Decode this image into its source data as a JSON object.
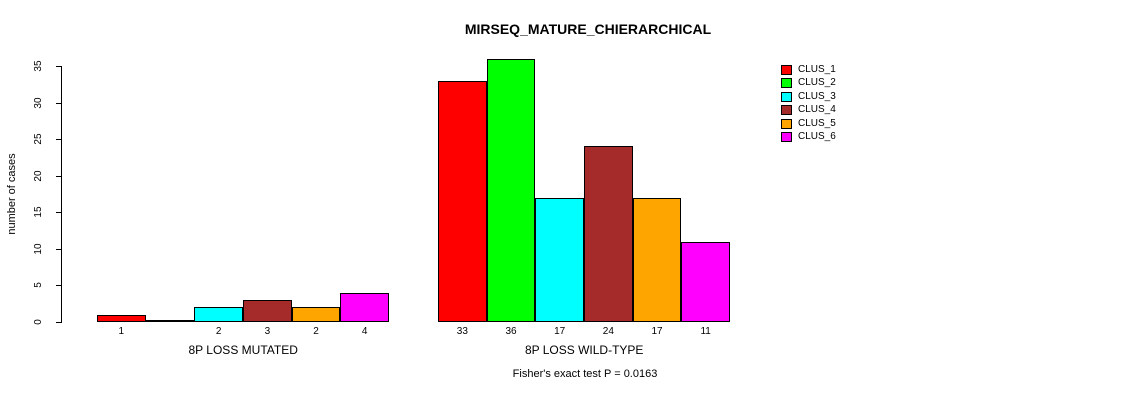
{
  "chart_data": {
    "type": "bar",
    "title": "MIRSEQ_MATURE_CHIERARCHICAL",
    "ylabel": "number of cases",
    "ylim": [
      0,
      35
    ],
    "yticks": [
      0,
      5,
      10,
      15,
      20,
      25,
      30,
      35
    ],
    "grid": false,
    "legend_position": "top-right",
    "categories": [
      "8P LOSS MUTATED",
      "8P LOSS WILD-TYPE"
    ],
    "series": [
      {
        "name": "CLUS_1",
        "color": "#FF0000",
        "values": [
          1,
          33
        ]
      },
      {
        "name": "CLUS_2",
        "color": "#00FF00",
        "values": [
          0,
          36
        ]
      },
      {
        "name": "CLUS_3",
        "color": "#00FFFF",
        "values": [
          2,
          17
        ]
      },
      {
        "name": "CLUS_4",
        "color": "#A52A2A",
        "values": [
          3,
          24
        ]
      },
      {
        "name": "CLUS_5",
        "color": "#FFA500",
        "values": [
          2,
          17
        ]
      },
      {
        "name": "CLUS_6",
        "color": "#FF00FF",
        "values": [
          4,
          11
        ]
      }
    ],
    "bar_value_labels": {
      "8P LOSS MUTATED": [
        "1",
        "",
        "2",
        "3",
        "2",
        "4"
      ],
      "8P LOSS WILD-TYPE": [
        "33",
        "36",
        "17",
        "24",
        "17",
        "11"
      ]
    },
    "annotation": "Fisher's exact test P = 0.0163",
    "axis_color": "#000000",
    "background_color": "#FFFFFF"
  }
}
